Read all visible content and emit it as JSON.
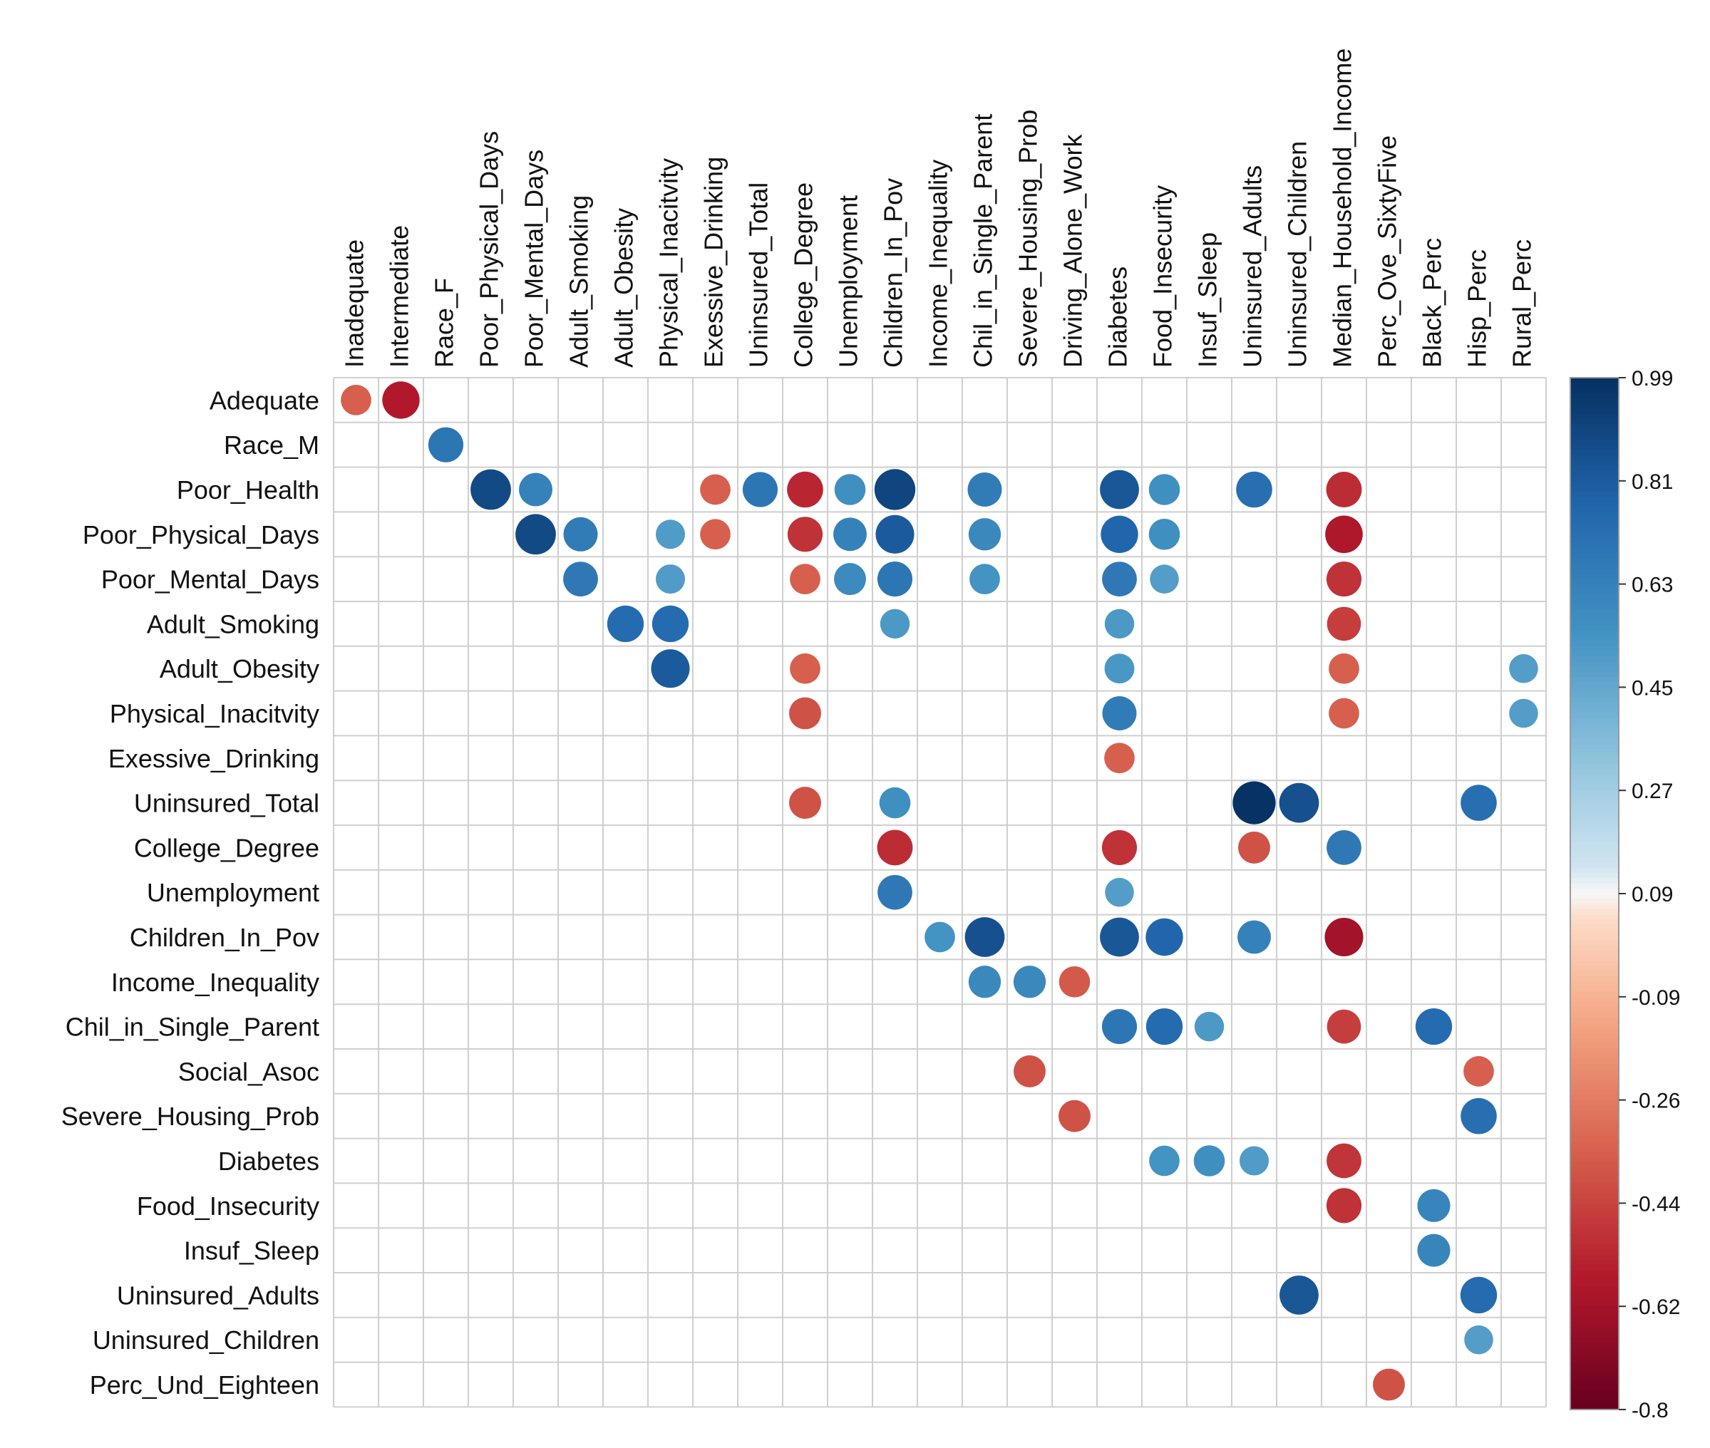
{
  "chart_data": {
    "type": "heatmap",
    "style": "correlation-circles",
    "title": "",
    "columns": [
      "Inadequate",
      "Intermediate",
      "Race_F",
      "Poor_Physical_Days",
      "Poor_Mental_Days",
      "Adult_Smoking",
      "Adult_Obesity",
      "Physical_Inacitvity",
      "Exessive_Drinking",
      "Uninsured_Total",
      "College_Degree",
      "Unemployment",
      "Children_In_Pov",
      "Income_Inequality",
      "Chil_in_Single_Parent",
      "Severe_Housing_Prob",
      "Driving_Alone_Work",
      "Diabetes",
      "Food_Insecurity",
      "Insuf_Sleep",
      "Uninsured_Adults",
      "Uninsured_Children",
      "Median_Household_Income",
      "Perc_Ove_SixtyFive",
      "Black_Perc",
      "Hisp_Perc",
      "Rural_Perc"
    ],
    "rows": [
      "Adequate",
      "Race_M",
      "Poor_Health",
      "Poor_Physical_Days",
      "Poor_Mental_Days",
      "Adult_Smoking",
      "Adult_Obesity",
      "Physical_Inacitvity",
      "Exessive_Drinking",
      "Uninsured_Total",
      "College_Degree",
      "Unemployment",
      "Children_In_Pov",
      "Income_Inequality",
      "Chil_in_Single_Parent",
      "Social_Asoc",
      "Severe_Housing_Prob",
      "Diabetes",
      "Food_Insecurity",
      "Insuf_Sleep",
      "Uninsured_Adults",
      "Uninsured_Children",
      "Perc_Und_Eighteen"
    ],
    "colorbar": {
      "min": -0.8,
      "max": 0.99,
      "tick_labels": [
        "0.99",
        "0.81",
        "0.63",
        "0.45",
        "0.27",
        "0.09",
        "-0.09",
        "-0.26",
        "-0.44",
        "-0.62",
        "-0.8"
      ]
    },
    "cells": [
      {
        "row": "Adequate",
        "col": "Inadequate",
        "value": -0.5
      },
      {
        "row": "Adequate",
        "col": "Intermediate",
        "value": -0.75
      },
      {
        "row": "Race_M",
        "col": "Race_F",
        "value": 0.66
      },
      {
        "row": "Poor_Health",
        "col": "Poor_Physical_Days",
        "value": 0.88
      },
      {
        "row": "Poor_Health",
        "col": "Poor_Mental_Days",
        "value": 0.6
      },
      {
        "row": "Poor_Health",
        "col": "Exessive_Drinking",
        "value": -0.5
      },
      {
        "row": "Poor_Health",
        "col": "Uninsured_Total",
        "value": 0.66
      },
      {
        "row": "Poor_Health",
        "col": "College_Degree",
        "value": -0.7
      },
      {
        "row": "Poor_Health",
        "col": "Unemployment",
        "value": 0.52
      },
      {
        "row": "Poor_Health",
        "col": "Children_In_Pov",
        "value": 0.9
      },
      {
        "row": "Poor_Health",
        "col": "Chil_in_Single_Parent",
        "value": 0.63
      },
      {
        "row": "Poor_Health",
        "col": "Diabetes",
        "value": 0.82
      },
      {
        "row": "Poor_Health",
        "col": "Food_Insecurity",
        "value": 0.52
      },
      {
        "row": "Poor_Health",
        "col": "Uninsured_Adults",
        "value": 0.7
      },
      {
        "row": "Poor_Health",
        "col": "Median_Household_Income",
        "value": -0.68
      },
      {
        "row": "Poor_Physical_Days",
        "col": "Poor_Mental_Days",
        "value": 0.88
      },
      {
        "row": "Poor_Physical_Days",
        "col": "Adult_Smoking",
        "value": 0.63
      },
      {
        "row": "Poor_Physical_Days",
        "col": "Physical_Inacitvity",
        "value": 0.46
      },
      {
        "row": "Poor_Physical_Days",
        "col": "Exessive_Drinking",
        "value": -0.5
      },
      {
        "row": "Poor_Physical_Days",
        "col": "College_Degree",
        "value": -0.66
      },
      {
        "row": "Poor_Physical_Days",
        "col": "Unemployment",
        "value": 0.6
      },
      {
        "row": "Poor_Physical_Days",
        "col": "Children_In_Pov",
        "value": 0.8
      },
      {
        "row": "Poor_Physical_Days",
        "col": "Chil_in_Single_Parent",
        "value": 0.56
      },
      {
        "row": "Poor_Physical_Days",
        "col": "Diabetes",
        "value": 0.75
      },
      {
        "row": "Poor_Physical_Days",
        "col": "Food_Insecurity",
        "value": 0.52
      },
      {
        "row": "Poor_Physical_Days",
        "col": "Median_Household_Income",
        "value": -0.76
      },
      {
        "row": "Poor_Mental_Days",
        "col": "Adult_Smoking",
        "value": 0.65
      },
      {
        "row": "Poor_Mental_Days",
        "col": "Physical_Inacitvity",
        "value": 0.46
      },
      {
        "row": "Poor_Mental_Days",
        "col": "College_Degree",
        "value": -0.5
      },
      {
        "row": "Poor_Mental_Days",
        "col": "Unemployment",
        "value": 0.55
      },
      {
        "row": "Poor_Mental_Days",
        "col": "Children_In_Pov",
        "value": 0.66
      },
      {
        "row": "Poor_Mental_Days",
        "col": "Chil_in_Single_Parent",
        "value": 0.5
      },
      {
        "row": "Poor_Mental_Days",
        "col": "Diabetes",
        "value": 0.65
      },
      {
        "row": "Poor_Mental_Days",
        "col": "Food_Insecurity",
        "value": 0.45
      },
      {
        "row": "Poor_Mental_Days",
        "col": "Median_Household_Income",
        "value": -0.66
      },
      {
        "row": "Adult_Smoking",
        "col": "Adult_Obesity",
        "value": 0.72
      },
      {
        "row": "Adult_Smoking",
        "col": "Physical_Inacitvity",
        "value": 0.72
      },
      {
        "row": "Adult_Smoking",
        "col": "Children_In_Pov",
        "value": 0.47
      },
      {
        "row": "Adult_Smoking",
        "col": "Diabetes",
        "value": 0.47
      },
      {
        "row": "Adult_Smoking",
        "col": "Median_Household_Income",
        "value": -0.62
      },
      {
        "row": "Adult_Obesity",
        "col": "Physical_Inacitvity",
        "value": 0.8
      },
      {
        "row": "Adult_Obesity",
        "col": "College_Degree",
        "value": -0.5
      },
      {
        "row": "Adult_Obesity",
        "col": "Diabetes",
        "value": 0.48
      },
      {
        "row": "Adult_Obesity",
        "col": "Median_Household_Income",
        "value": -0.5
      },
      {
        "row": "Adult_Obesity",
        "col": "Rural_Perc",
        "value": 0.45
      },
      {
        "row": "Physical_Inacitvity",
        "col": "College_Degree",
        "value": -0.55
      },
      {
        "row": "Physical_Inacitvity",
        "col": "Diabetes",
        "value": 0.63
      },
      {
        "row": "Physical_Inacitvity",
        "col": "Median_Household_Income",
        "value": -0.5
      },
      {
        "row": "Physical_Inacitvity",
        "col": "Rural_Perc",
        "value": 0.45
      },
      {
        "row": "Exessive_Drinking",
        "col": "Diabetes",
        "value": -0.5
      },
      {
        "row": "Uninsured_Total",
        "col": "College_Degree",
        "value": -0.55
      },
      {
        "row": "Uninsured_Total",
        "col": "Children_In_Pov",
        "value": 0.52
      },
      {
        "row": "Uninsured_Total",
        "col": "Uninsured_Adults",
        "value": 0.99
      },
      {
        "row": "Uninsured_Total",
        "col": "Uninsured_Children",
        "value": 0.85
      },
      {
        "row": "Uninsured_Total",
        "col": "Hisp_Perc",
        "value": 0.7
      },
      {
        "row": "College_Degree",
        "col": "Children_In_Pov",
        "value": -0.68
      },
      {
        "row": "College_Degree",
        "col": "Diabetes",
        "value": -0.66
      },
      {
        "row": "College_Degree",
        "col": "Uninsured_Adults",
        "value": -0.55
      },
      {
        "row": "College_Degree",
        "col": "Median_Household_Income",
        "value": 0.65
      },
      {
        "row": "Unemployment",
        "col": "Children_In_Pov",
        "value": 0.65
      },
      {
        "row": "Unemployment",
        "col": "Diabetes",
        "value": 0.45
      },
      {
        "row": "Children_In_Pov",
        "col": "Income_Inequality",
        "value": 0.5
      },
      {
        "row": "Children_In_Pov",
        "col": "Chil_in_Single_Parent",
        "value": 0.85
      },
      {
        "row": "Children_In_Pov",
        "col": "Diabetes",
        "value": 0.82
      },
      {
        "row": "Children_In_Pov",
        "col": "Food_Insecurity",
        "value": 0.75
      },
      {
        "row": "Children_In_Pov",
        "col": "Uninsured_Adults",
        "value": 0.6
      },
      {
        "row": "Children_In_Pov",
        "col": "Median_Household_Income",
        "value": -0.8
      },
      {
        "row": "Income_Inequality",
        "col": "Chil_in_Single_Parent",
        "value": 0.56
      },
      {
        "row": "Income_Inequality",
        "col": "Severe_Housing_Prob",
        "value": 0.56
      },
      {
        "row": "Income_Inequality",
        "col": "Driving_Alone_Work",
        "value": -0.52
      },
      {
        "row": "Chil_in_Single_Parent",
        "col": "Diabetes",
        "value": 0.66
      },
      {
        "row": "Chil_in_Single_Parent",
        "col": "Food_Insecurity",
        "value": 0.72
      },
      {
        "row": "Chil_in_Single_Parent",
        "col": "Insuf_Sleep",
        "value": 0.47
      },
      {
        "row": "Chil_in_Single_Parent",
        "col": "Median_Household_Income",
        "value": -0.62
      },
      {
        "row": "Chil_in_Single_Parent",
        "col": "Black_Perc",
        "value": 0.72
      },
      {
        "row": "Social_Asoc",
        "col": "Severe_Housing_Prob",
        "value": -0.55
      },
      {
        "row": "Social_Asoc",
        "col": "Hisp_Perc",
        "value": -0.5
      },
      {
        "row": "Severe_Housing_Prob",
        "col": "Driving_Alone_Work",
        "value": -0.55
      },
      {
        "row": "Severe_Housing_Prob",
        "col": "Hisp_Perc",
        "value": 0.7
      },
      {
        "row": "Diabetes",
        "col": "Food_Insecurity",
        "value": 0.5
      },
      {
        "row": "Diabetes",
        "col": "Insuf_Sleep",
        "value": 0.52
      },
      {
        "row": "Diabetes",
        "col": "Uninsured_Adults",
        "value": 0.46
      },
      {
        "row": "Diabetes",
        "col": "Median_Household_Income",
        "value": -0.65
      },
      {
        "row": "Food_Insecurity",
        "col": "Median_Household_Income",
        "value": -0.66
      },
      {
        "row": "Food_Insecurity",
        "col": "Black_Perc",
        "value": 0.58
      },
      {
        "row": "Insuf_Sleep",
        "col": "Black_Perc",
        "value": 0.58
      },
      {
        "row": "Uninsured_Adults",
        "col": "Uninsured_Children",
        "value": 0.82
      },
      {
        "row": "Uninsured_Adults",
        "col": "Hisp_Perc",
        "value": 0.72
      },
      {
        "row": "Uninsured_Children",
        "col": "Hisp_Perc",
        "value": 0.45
      },
      {
        "row": "Perc_Und_Eighteen",
        "col": "Perc_Ove_SixtyFive",
        "value": -0.55
      }
    ],
    "xlabel": "",
    "ylabel": "",
    "legend": "right"
  }
}
